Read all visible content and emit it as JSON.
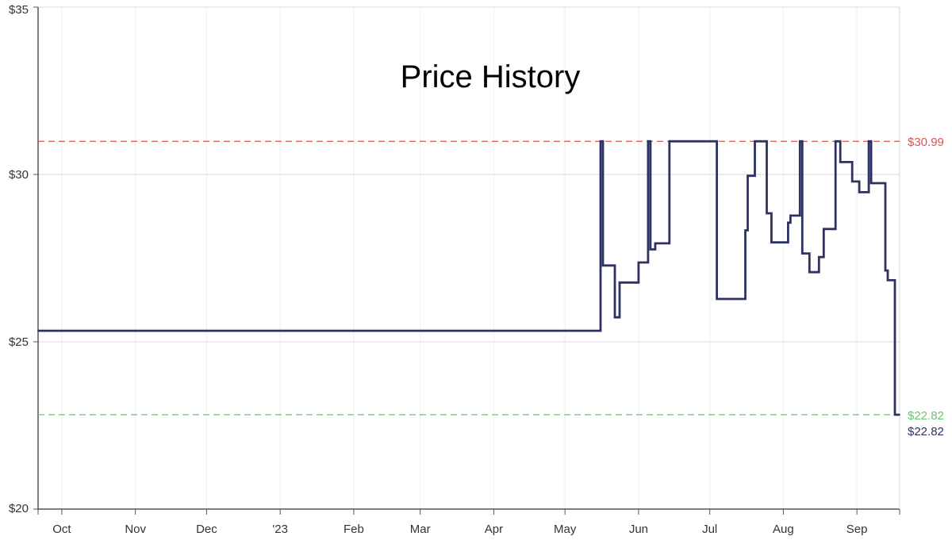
{
  "chart_data": {
    "type": "line",
    "title": "Price History",
    "xlabel": "",
    "ylabel": "",
    "ylim": [
      20,
      35
    ],
    "xlim": [
      "2022-09-21",
      "2023-09-19"
    ],
    "y_ticks": [
      {
        "value": 20,
        "label": "$20"
      },
      {
        "value": 25,
        "label": "$25"
      },
      {
        "value": 30,
        "label": "$30"
      },
      {
        "value": 35,
        "label": "$35"
      }
    ],
    "x_ticks": [
      {
        "date": "2022-10-01",
        "label": "Oct"
      },
      {
        "date": "2022-11-01",
        "label": "Nov"
      },
      {
        "date": "2022-12-01",
        "label": "Dec"
      },
      {
        "date": "2023-01-01",
        "label": "'23"
      },
      {
        "date": "2023-02-01",
        "label": "Feb"
      },
      {
        "date": "2023-03-01",
        "label": "Mar"
      },
      {
        "date": "2023-04-01",
        "label": "Apr"
      },
      {
        "date": "2023-05-01",
        "label": "May"
      },
      {
        "date": "2023-06-01",
        "label": "Jun"
      },
      {
        "date": "2023-07-01",
        "label": "Jul"
      },
      {
        "date": "2023-08-01",
        "label": "Aug"
      },
      {
        "date": "2023-09-01",
        "label": "Sep"
      }
    ],
    "grid": true,
    "reference_lines": [
      {
        "name": "highest",
        "value": 30.99,
        "label": "$30.99",
        "color": "#d9534f",
        "style": "dashed"
      },
      {
        "name": "lowest",
        "value": 22.82,
        "label": "$22.82",
        "color": "#6cc46c",
        "style": "dashed"
      }
    ],
    "current_price": {
      "value": 22.82,
      "label": "$22.82",
      "color": "#2e3263"
    },
    "line_color": "#2e3263",
    "series": [
      {
        "interpolation": "step",
        "points": [
          {
            "x": "2022-09-21",
            "y": 25.33
          },
          {
            "x": "2023-05-16",
            "y": 30.99
          },
          {
            "x": "2023-05-17",
            "y": 27.28
          },
          {
            "x": "2023-05-22",
            "y": 25.73
          },
          {
            "x": "2023-05-24",
            "y": 26.77
          },
          {
            "x": "2023-06-01",
            "y": 27.37
          },
          {
            "x": "2023-06-05",
            "y": 30.99
          },
          {
            "x": "2023-06-06",
            "y": 27.76
          },
          {
            "x": "2023-06-08",
            "y": 27.94
          },
          {
            "x": "2023-06-14",
            "y": 30.99
          },
          {
            "x": "2023-07-04",
            "y": 26.28
          },
          {
            "x": "2023-07-16",
            "y": 28.33
          },
          {
            "x": "2023-07-17",
            "y": 29.96
          },
          {
            "x": "2023-07-20",
            "y": 30.99
          },
          {
            "x": "2023-07-25",
            "y": 28.84
          },
          {
            "x": "2023-07-27",
            "y": 27.97
          },
          {
            "x": "2023-08-03",
            "y": 28.56
          },
          {
            "x": "2023-08-04",
            "y": 28.77
          },
          {
            "x": "2023-08-08",
            "y": 30.99
          },
          {
            "x": "2023-08-09",
            "y": 27.64
          },
          {
            "x": "2023-08-12",
            "y": 27.08
          },
          {
            "x": "2023-08-16",
            "y": 27.53
          },
          {
            "x": "2023-08-18",
            "y": 28.37
          },
          {
            "x": "2023-08-23",
            "y": 30.99
          },
          {
            "x": "2023-08-25",
            "y": 30.37
          },
          {
            "x": "2023-08-30",
            "y": 29.79
          },
          {
            "x": "2023-09-02",
            "y": 29.47
          },
          {
            "x": "2023-09-06",
            "y": 30.99
          },
          {
            "x": "2023-09-07",
            "y": 29.74
          },
          {
            "x": "2023-09-13",
            "y": 27.13
          },
          {
            "x": "2023-09-14",
            "y": 26.84
          },
          {
            "x": "2023-09-17",
            "y": 22.82
          },
          {
            "x": "2023-09-19",
            "y": 22.82
          }
        ]
      }
    ]
  }
}
